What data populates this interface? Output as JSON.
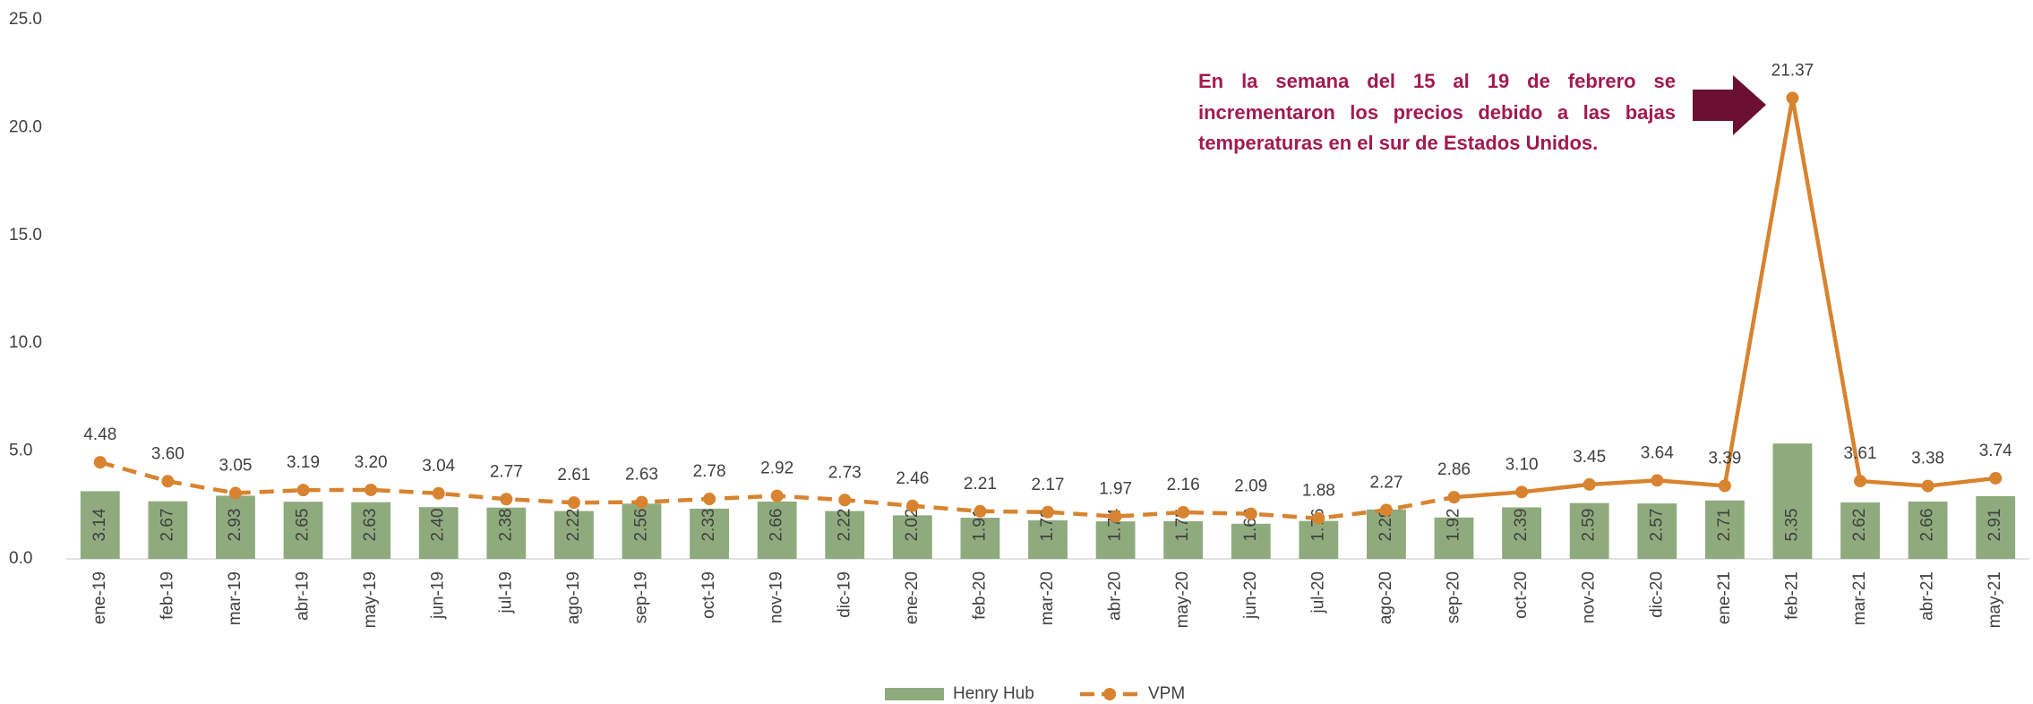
{
  "chart_data": {
    "type": "bar-line",
    "categories": [
      "ene-19",
      "feb-19",
      "mar-19",
      "abr-19",
      "may-19",
      "jun-19",
      "jul-19",
      "ago-19",
      "sep-19",
      "oct-19",
      "nov-19",
      "dic-19",
      "ene-20",
      "feb-20",
      "mar-20",
      "abr-20",
      "may-20",
      "jun-20",
      "jul-20",
      "ago-20",
      "sep-20",
      "oct-20",
      "nov-20",
      "dic-20",
      "ene-21",
      "feb-21",
      "mar-21",
      "abr-21",
      "may-21"
    ],
    "series": [
      {
        "name": "Henry Hub",
        "type": "bar",
        "color": "#8fab7e",
        "values": [
          3.14,
          2.67,
          2.93,
          2.65,
          2.63,
          2.4,
          2.38,
          2.22,
          2.56,
          2.33,
          2.66,
          2.22,
          2.02,
          1.91,
          1.79,
          1.74,
          1.75,
          1.63,
          1.76,
          2.29,
          1.92,
          2.39,
          2.59,
          2.57,
          2.71,
          5.35,
          2.62,
          2.66,
          2.91
        ],
        "value_labels": [
          "3.14",
          "2.67",
          "2.93",
          "2.65",
          "2.63",
          "2.40",
          "2.38",
          "2.22",
          "2.56",
          "2.33",
          "2.66",
          "2.22",
          "2.02",
          "1.91",
          "1.79",
          "1.74",
          "1.75",
          "1.63",
          "1.76",
          "2.29",
          "1.92",
          "2.39",
          "2.59",
          "2.57",
          "2.71",
          "5.35",
          "2.62",
          "2.66",
          "2.91"
        ]
      },
      {
        "name": "VPM",
        "type": "line",
        "color": "#d8832f",
        "values": [
          4.48,
          3.6,
          3.05,
          3.19,
          3.2,
          3.04,
          2.77,
          2.61,
          2.63,
          2.78,
          2.92,
          2.73,
          2.46,
          2.21,
          2.17,
          1.97,
          2.16,
          2.09,
          1.88,
          2.27,
          2.86,
          3.1,
          3.45,
          3.64,
          3.39,
          21.37,
          3.61,
          3.38,
          3.74
        ],
        "value_labels": [
          "4.48",
          "3.60",
          "3.05",
          "3.19",
          "3.20",
          "3.04",
          "2.77",
          "2.61",
          "2.63",
          "2.78",
          "2.92",
          "2.73",
          "2.46",
          "2.21",
          "2.17",
          "1.97",
          "2.16",
          "2.09",
          "1.88",
          "2.27",
          "2.86",
          "3.10",
          "3.45",
          "3.64",
          "3.39",
          "21.37",
          "3.61",
          "3.38",
          "3.74"
        ]
      }
    ],
    "ylim": [
      0,
      25
    ],
    "yticks": [
      {
        "value": 0,
        "label": "0.0"
      },
      {
        "value": 5,
        "label": "5.0"
      },
      {
        "value": 10,
        "label": "10.0"
      },
      {
        "value": 15,
        "label": "15.0"
      },
      {
        "value": 20,
        "label": "20.0"
      },
      {
        "value": 25,
        "label": "25.0"
      }
    ],
    "annotation": "En la semana del 15 al 19 de febrero se incrementaron los precios debido a las bajas temperaturas en el sur de Estados Unidos.",
    "legend": "bottom"
  }
}
